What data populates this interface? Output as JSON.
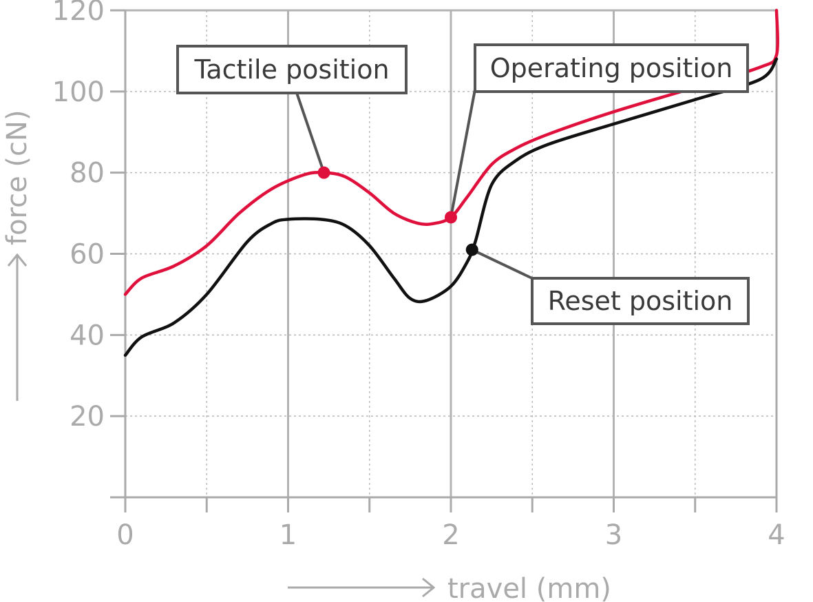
{
  "chart_data": {
    "type": "line",
    "xlabel": "travel (mm)",
    "ylabel": "force (cN)",
    "xlim": [
      0,
      4
    ],
    "ylim": [
      0,
      120
    ],
    "x_ticks": [
      "0",
      "1",
      "2",
      "3",
      "4"
    ],
    "y_ticks": [
      "20",
      "40",
      "60",
      "80",
      "100",
      "120"
    ],
    "grid": true,
    "series": [
      {
        "color": "#e0103c",
        "points": [
          [
            0,
            50
          ],
          [
            0.1,
            54
          ],
          [
            0.3,
            57
          ],
          [
            0.5,
            62
          ],
          [
            0.7,
            70
          ],
          [
            0.9,
            76
          ],
          [
            1.1,
            79.5
          ],
          [
            1.22,
            80
          ],
          [
            1.35,
            79
          ],
          [
            1.5,
            75
          ],
          [
            1.65,
            70
          ],
          [
            1.8,
            67.5
          ],
          [
            1.9,
            67.5
          ],
          [
            2.0,
            69
          ],
          [
            2.1,
            74
          ],
          [
            2.25,
            82
          ],
          [
            2.4,
            86
          ],
          [
            2.6,
            89.5
          ],
          [
            3.0,
            95
          ],
          [
            3.5,
            101
          ],
          [
            3.9,
            106
          ],
          [
            4.0,
            109
          ],
          [
            4.0,
            120
          ]
        ]
      },
      {
        "color": "#111111",
        "points": [
          [
            0,
            35
          ],
          [
            0.1,
            39.5
          ],
          [
            0.3,
            43
          ],
          [
            0.5,
            50
          ],
          [
            0.75,
            63
          ],
          [
            0.9,
            67.5
          ],
          [
            1.0,
            68.5
          ],
          [
            1.2,
            68.5
          ],
          [
            1.35,
            67
          ],
          [
            1.5,
            62
          ],
          [
            1.65,
            54
          ],
          [
            1.75,
            49
          ],
          [
            1.85,
            48.5
          ],
          [
            2.0,
            52
          ],
          [
            2.1,
            58
          ],
          [
            2.15,
            63
          ],
          [
            2.25,
            77
          ],
          [
            2.4,
            83
          ],
          [
            2.6,
            87
          ],
          [
            3.0,
            92
          ],
          [
            3.5,
            98
          ],
          [
            3.9,
            103
          ],
          [
            4.0,
            108
          ]
        ]
      }
    ],
    "annotations": [
      {
        "label": "Tactile position",
        "x": 1.22,
        "y": 80,
        "color": "#e0103c"
      },
      {
        "label": "Operating position",
        "x": 2.0,
        "y": 69,
        "color": "#e0103c"
      },
      {
        "label": "Reset position",
        "x": 2.13,
        "y": 61,
        "color": "#111111"
      }
    ]
  }
}
